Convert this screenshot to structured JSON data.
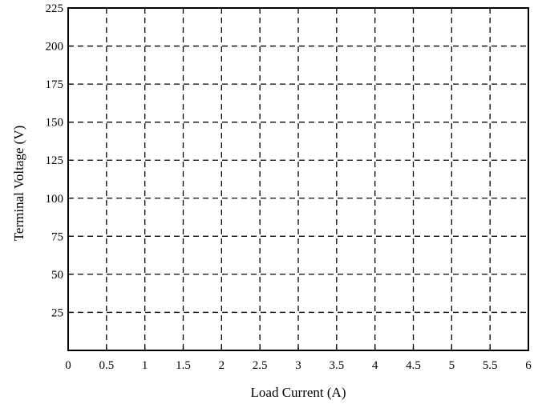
{
  "chart_data": {
    "type": "line",
    "title": "",
    "xlabel": "Load Current (A)",
    "ylabel": "Terminal Voltage (V)",
    "xlim": [
      0,
      6
    ],
    "ylim": [
      0,
      225
    ],
    "x_ticks": [
      0,
      0.5,
      1,
      1.5,
      2,
      2.5,
      3,
      3.5,
      4,
      4.5,
      5,
      5.5,
      6
    ],
    "x_tick_labels": [
      "0",
      "0.5",
      "1",
      "1.5",
      "2",
      "2.5",
      "3",
      "3.5",
      "4",
      "4.5",
      "5",
      "5.5",
      "6"
    ],
    "y_ticks": [
      25,
      50,
      75,
      100,
      125,
      150,
      175,
      200,
      225
    ],
    "y_tick_labels": [
      "25",
      "50",
      "75",
      "100",
      "125",
      "150",
      "175",
      "200",
      "225"
    ],
    "grid": true,
    "grid_style": "dashed",
    "series": []
  }
}
